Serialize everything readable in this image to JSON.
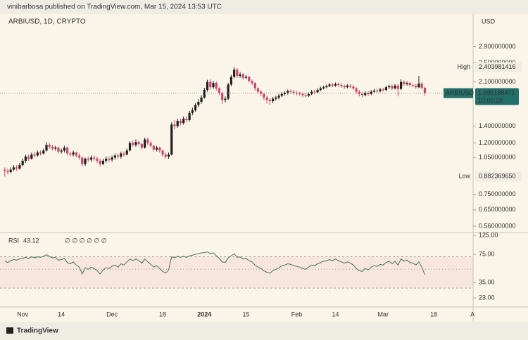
{
  "header": "vinibarbosa published on TradingView.com, Mar 15, 2024 13:53 UTC",
  "footer": "TradingView",
  "chart_data": {
    "type": "candlestick",
    "title": "ARBIUSD, 1D, CRYPTO",
    "currency": "USD",
    "log_scale": true,
    "up_color": "#1f1f1f",
    "down_color": "#c9466f",
    "open": [
      0.94,
      0.93,
      0.92,
      0.94,
      0.96,
      0.95,
      0.98,
      1.02,
      1.06,
      1.04,
      1.08,
      1.07,
      1.1,
      1.09,
      1.12,
      1.18,
      1.16,
      1.14,
      1.15,
      1.11,
      1.12,
      1.15,
      1.09,
      1.08,
      1.1,
      1.07,
      1.05,
      0.99,
      1.04,
      1.03,
      1.05,
      1.04,
      1.02,
      0.99,
      1.02,
      1.04,
      1.03,
      1.05,
      1.07,
      1.06,
      1.09,
      1.08,
      1.12,
      1.2,
      1.18,
      1.21,
      1.19,
      1.15,
      1.24,
      1.2,
      1.17,
      1.13,
      1.15,
      1.12,
      1.08,
      1.06,
      1.08,
      1.42,
      1.4,
      1.47,
      1.44,
      1.5,
      1.48,
      1.58,
      1.62,
      1.7,
      1.75,
      1.82,
      1.95,
      2.1,
      2,
      2.08,
      1.98,
      1.9,
      1.78,
      1.8,
      2.05,
      2.2,
      2.35,
      2.22,
      2.25,
      2.18,
      2.2,
      2.12,
      2.08,
      1.98,
      1.92,
      1.88,
      1.82,
      1.78,
      1.76,
      1.8,
      1.82,
      1.85,
      1.88,
      1.9,
      1.93,
      1.92,
      1.9,
      1.89,
      1.88,
      1.86,
      1.85,
      1.88,
      1.92,
      1.91,
      1.95,
      1.98,
      2,
      2.02,
      2.05,
      2.03,
      2.06,
      2.04,
      2.02,
      2,
      2.03,
      2.01,
      1.98,
      1.92,
      1.88,
      1.86,
      1.9,
      1.88,
      1.92,
      1.94,
      1.93,
      1.96,
      1.95,
      2,
      2.02,
      1.98,
      2.03,
      1.97,
      2.1,
      2.06,
      2.08,
      2.04,
      2.03,
      2,
      2.07,
      1.99
    ],
    "high": [
      0.96,
      0.95,
      0.96,
      0.98,
      0.98,
      1,
      1.04,
      1.08,
      1.08,
      1.1,
      1.1,
      1.12,
      1.12,
      1.14,
      1.21,
      1.2,
      1.18,
      1.17,
      1.16,
      1.14,
      1.17,
      1.16,
      1.11,
      1.12,
      1.11,
      1.09,
      1.06,
      1.05,
      1.06,
      1.07,
      1.07,
      1.06,
      1.04,
      1.04,
      1.06,
      1.06,
      1.07,
      1.09,
      1.09,
      1.11,
      1.11,
      1.14,
      1.22,
      1.23,
      1.24,
      1.23,
      1.2,
      1.26,
      1.26,
      1.22,
      1.18,
      1.17,
      1.16,
      1.13,
      1.1,
      1.1,
      1.45,
      1.48,
      1.5,
      1.5,
      1.53,
      1.53,
      1.61,
      1.66,
      1.73,
      1.79,
      1.86,
      1.99,
      2.14,
      2.15,
      2.12,
      2.11,
      2,
      1.92,
      1.84,
      2.08,
      2.24,
      2.403981416,
      2.38,
      2.3,
      2.28,
      2.24,
      2.22,
      2.15,
      2.1,
      2,
      1.95,
      1.9,
      1.85,
      1.81,
      1.83,
      1.85,
      1.88,
      1.91,
      1.93,
      1.96,
      1.96,
      1.95,
      1.93,
      1.92,
      1.91,
      1.89,
      1.91,
      1.95,
      1.95,
      1.98,
      2.01,
      2.03,
      2.05,
      2.08,
      2.08,
      2.09,
      2.09,
      2.07,
      2.05,
      2.06,
      2.06,
      2.04,
      2,
      1.95,
      1.91,
      1.93,
      1.93,
      1.95,
      1.97,
      1.97,
      1.99,
      1.99,
      2.03,
      2.05,
      2.05,
      2.06,
      2.06,
      2.15,
      2.13,
      2.11,
      2.1,
      2.07,
      2.06,
      2.22,
      2.09,
      2.01
    ],
    "low": [
      0.88236965,
      0.9,
      0.91,
      0.93,
      0.93,
      0.94,
      0.97,
      1,
      1.02,
      1.03,
      1.05,
      1.06,
      1.07,
      1.08,
      1.11,
      1.14,
      1.12,
      1.12,
      1.09,
      1.09,
      1.1,
      1.07,
      1.06,
      1.06,
      1.05,
      1.03,
      0.97,
      0.97,
      1.01,
      1.01,
      1.02,
      1,
      0.97,
      0.98,
      1,
      1.01,
      1.01,
      1.03,
      1.04,
      1.04,
      1.06,
      1.07,
      1.11,
      1.16,
      1.16,
      1.17,
      1.13,
      1.14,
      1.18,
      1.15,
      1.11,
      1.11,
      1.1,
      1.06,
      1.04,
      1.04,
      1.07,
      1.36,
      1.38,
      1.41,
      1.42,
      1.45,
      1.46,
      1.55,
      1.6,
      1.67,
      1.72,
      1.8,
      1.92,
      1.96,
      1.97,
      1.94,
      1.86,
      1.72,
      1.74,
      1.78,
      2.02,
      2.17,
      2.18,
      2.18,
      2.14,
      2.15,
      2.09,
      2.04,
      1.94,
      1.88,
      1.84,
      1.78,
      1.72,
      1.7,
      1.73,
      1.77,
      1.79,
      1.83,
      1.85,
      1.87,
      1.89,
      1.87,
      1.86,
      1.85,
      1.83,
      1.82,
      1.83,
      1.86,
      1.88,
      1.89,
      1.93,
      1.96,
      1.98,
      2,
      2,
      2.01,
      2.01,
      1.99,
      1.97,
      1.98,
      1.98,
      1.95,
      1.89,
      1.84,
      1.82,
      1.84,
      1.85,
      1.86,
      1.89,
      1.9,
      1.91,
      1.92,
      1.93,
      1.97,
      1.95,
      1.96,
      1.84,
      1.95,
      2.03,
      2.03,
      2.01,
      2,
      1.97,
      1.98,
      1.96,
      1.85
    ],
    "close": [
      0.93,
      0.92,
      0.94,
      0.96,
      0.95,
      0.98,
      1.02,
      1.06,
      1.04,
      1.08,
      1.07,
      1.1,
      1.09,
      1.12,
      1.18,
      1.16,
      1.14,
      1.15,
      1.11,
      1.12,
      1.15,
      1.09,
      1.08,
      1.1,
      1.07,
      1.05,
      0.99,
      1.04,
      1.03,
      1.05,
      1.04,
      1.02,
      0.99,
      1.02,
      1.04,
      1.03,
      1.05,
      1.07,
      1.06,
      1.09,
      1.08,
      1.12,
      1.2,
      1.18,
      1.21,
      1.19,
      1.15,
      1.24,
      1.2,
      1.17,
      1.13,
      1.15,
      1.12,
      1.08,
      1.06,
      1.08,
      1.42,
      1.4,
      1.47,
      1.44,
      1.5,
      1.48,
      1.58,
      1.62,
      1.7,
      1.75,
      1.82,
      1.95,
      2.1,
      2,
      2.08,
      1.98,
      1.9,
      1.78,
      1.8,
      2.05,
      2.2,
      2.35,
      2.22,
      2.25,
      2.18,
      2.2,
      2.12,
      2.08,
      1.98,
      1.92,
      1.88,
      1.82,
      1.78,
      1.76,
      1.8,
      1.82,
      1.85,
      1.88,
      1.9,
      1.93,
      1.92,
      1.9,
      1.89,
      1.88,
      1.86,
      1.85,
      1.88,
      1.92,
      1.91,
      1.95,
      1.98,
      2,
      2.02,
      2.05,
      2.03,
      2.06,
      2.04,
      2.02,
      2,
      2.03,
      2.01,
      1.98,
      1.92,
      1.88,
      1.86,
      1.9,
      1.88,
      1.92,
      1.94,
      1.93,
      1.96,
      1.95,
      2,
      2.02,
      1.98,
      2.03,
      1.97,
      2.1,
      2.06,
      2.08,
      2.04,
      2.03,
      2,
      2.07,
      1.99,
      1.895188471
    ],
    "high_label": "High",
    "low_label": "Low",
    "low_value_label": "0.882369650",
    "symbol": "ARBIUSD",
    "countdown": "10:06:28",
    "last_color": "#23706a",
    "ylim": [
      0.532,
      3.91
    ],
    "yticks": [
      {
        "value": 2.9,
        "label": "2.900000000"
      },
      {
        "value": 2.5,
        "label": "2.500000000"
      },
      {
        "value": 2.1,
        "label": "2.100000000"
      },
      {
        "value": 1.4,
        "label": "1.400000000"
      },
      {
        "value": 1.2,
        "label": "1.200000000"
      },
      {
        "value": 1.05,
        "label": "1.050000000"
      },
      {
        "value": 0.75,
        "label": "0.750000000"
      },
      {
        "value": 0.65,
        "label": "0.650000000"
      },
      {
        "value": 0.56,
        "label": "0.560000000"
      }
    ],
    "xlim": [
      -1.6,
      157.2
    ],
    "xticks": [
      {
        "value": 6,
        "label": "Nov"
      },
      {
        "value": 19,
        "label": "14"
      },
      {
        "value": 36,
        "label": "Dec"
      },
      {
        "value": 53,
        "label": "18"
      },
      {
        "value": 67,
        "label": "2024"
      },
      {
        "value": 81,
        "label": "15"
      },
      {
        "value": 98,
        "label": "Feb"
      },
      {
        "value": 111,
        "label": "14"
      },
      {
        "value": 127,
        "label": "Mar"
      },
      {
        "value": 144,
        "label": "18"
      },
      {
        "value": 157,
        "label": "A"
      }
    ],
    "rsi": {
      "name": "RSI",
      "inputs": "∅ ∅ ∅ ∅ ∅ ∅",
      "color": "#46744e",
      "log_scale": true,
      "ylim": [
        18,
        130
      ],
      "levels": [
        30,
        50,
        70
      ],
      "yticks": [
        {
          "value": 125,
          "label": "125.00"
        },
        {
          "value": 75,
          "label": "75.00"
        },
        {
          "value": 35,
          "label": "35.00"
        },
        {
          "value": 23,
          "label": "23.00"
        }
      ],
      "values": [
        62,
        60,
        63,
        65,
        64,
        66,
        67,
        69,
        67,
        70,
        68,
        70,
        69,
        71,
        74,
        71,
        68,
        69,
        64,
        65,
        67,
        60,
        58,
        61,
        56,
        53,
        44,
        52,
        50,
        53,
        51,
        48,
        44,
        49,
        52,
        51,
        54,
        56,
        53,
        58,
        56,
        61,
        66,
        63,
        66,
        63,
        59,
        66,
        61,
        57,
        53,
        55,
        51,
        47,
        45,
        49,
        70,
        68,
        71,
        69,
        71,
        69,
        72,
        73,
        75,
        76,
        78,
        78,
        80,
        76,
        78,
        72,
        67,
        61,
        60,
        68,
        72,
        76,
        69,
        70,
        66,
        67,
        63,
        61,
        56,
        53,
        51,
        48,
        46,
        45,
        48,
        50,
        52,
        55,
        56,
        58,
        57,
        55,
        54,
        53,
        51,
        50,
        53,
        56,
        55,
        58,
        60,
        62,
        63,
        65,
        63,
        66,
        63,
        61,
        59,
        61,
        59,
        56,
        51,
        48,
        47,
        51,
        49,
        53,
        55,
        54,
        57,
        56,
        60,
        62,
        58,
        62,
        56,
        66,
        62,
        64,
        60,
        59,
        56,
        61,
        53,
        43.12
      ]
    }
  }
}
